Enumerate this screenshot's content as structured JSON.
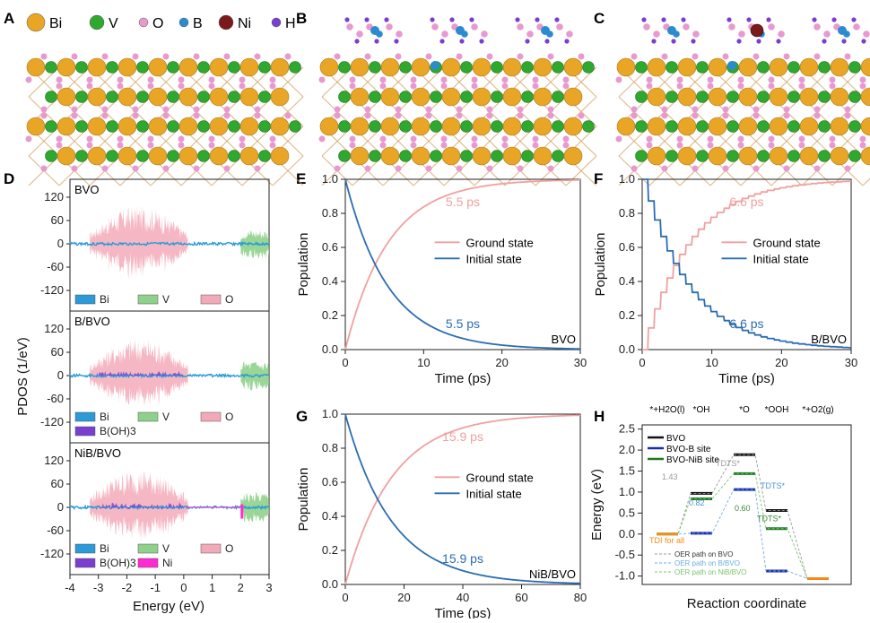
{
  "panel_labels": {
    "A": "A",
    "B": "B",
    "C": "C",
    "D": "D",
    "E": "E",
    "F": "F",
    "G": "G",
    "H": "H"
  },
  "atom_legend": [
    {
      "symbol": "Bi",
      "color": "#e8a526"
    },
    {
      "symbol": "V",
      "color": "#2ea82e"
    },
    {
      "symbol": "O",
      "color": "#e89ad0"
    },
    {
      "symbol": "B",
      "color": "#2a8ccf"
    },
    {
      "symbol": "Ni",
      "color": "#7a1a1a"
    },
    {
      "symbol": "H",
      "color": "#7a3ed1"
    }
  ],
  "colors": {
    "bi": "#2a9ad8",
    "v": "#8fd18a",
    "o": "#f3aab8",
    "boh3": "#7a3ed1",
    "ni": "#ff2ad1",
    "ground": "#f0a0a0",
    "initial": "#2b6db3"
  },
  "pdos": {
    "ylabel": "PDOS (1/eV)",
    "xlabel": "Energy (eV)",
    "xticks": [
      "-4",
      "-3",
      "-2",
      "-1",
      "0",
      "1",
      "2",
      "3"
    ],
    "yticks": [
      "120",
      "60",
      "0",
      "-60",
      "-120"
    ],
    "panels": [
      {
        "title": "BVO",
        "legend": [
          {
            "key": "bi",
            "label": "Bi"
          },
          {
            "key": "v",
            "label": "V"
          },
          {
            "key": "o",
            "label": "O"
          }
        ]
      },
      {
        "title": "B/BVO",
        "legend": [
          {
            "key": "bi",
            "label": "Bi"
          },
          {
            "key": "v",
            "label": "V"
          },
          {
            "key": "o",
            "label": "O"
          },
          {
            "key": "boh3",
            "label": "B(OH)3"
          }
        ]
      },
      {
        "title": "NiB/BVO",
        "legend": [
          {
            "key": "bi",
            "label": "Bi"
          },
          {
            "key": "v",
            "label": "V"
          },
          {
            "key": "o",
            "label": "O"
          },
          {
            "key": "boh3",
            "label": "B(OH)3"
          },
          {
            "key": "ni",
            "label": "Ni"
          }
        ]
      }
    ]
  },
  "chart_data": [
    {
      "panel": "E",
      "type": "line",
      "label": "BVO",
      "xlabel": "Time (ps)",
      "ylabel": "Population",
      "xlim": [
        0,
        30
      ],
      "ylim": [
        0,
        1
      ],
      "xticks": [
        "0",
        "10",
        "20",
        "30"
      ],
      "yticks": [
        "0.0",
        "0.2",
        "0.4",
        "0.6",
        "0.8",
        "1.0"
      ],
      "series": [
        {
          "name": "Ground state",
          "tau": 5.5,
          "tau_label": "5.5 ps"
        },
        {
          "name": "Initial state",
          "tau": 5.5,
          "tau_label": "5.5 ps"
        }
      ]
    },
    {
      "panel": "F",
      "type": "line",
      "label": "B/BVO",
      "xlabel": "Time (ps)",
      "ylabel": "Population",
      "xlim": [
        0,
        30
      ],
      "ylim": [
        0,
        1
      ],
      "xticks": [
        "0",
        "10",
        "20",
        "30"
      ],
      "yticks": [
        "0.0",
        "0.2",
        "0.4",
        "0.6",
        "0.8",
        "1.0"
      ],
      "series": [
        {
          "name": "Ground state",
          "tau": 6.6,
          "tau_label": "6.6 ps"
        },
        {
          "name": "Initial state",
          "tau": 6.6,
          "tau_label": "6.6 ps"
        }
      ]
    },
    {
      "panel": "G",
      "type": "line",
      "label": "NiB/BVO",
      "xlabel": "Time (ps)",
      "ylabel": "Population",
      "xlim": [
        0,
        80
      ],
      "ylim": [
        0,
        1
      ],
      "xticks": [
        "0",
        "20",
        "40",
        "60",
        "80"
      ],
      "yticks": [
        "0.0",
        "0.2",
        "0.4",
        "0.6",
        "0.8",
        "1.0"
      ],
      "series": [
        {
          "name": "Ground state",
          "tau": 15.9,
          "tau_label": "15.9 ps"
        },
        {
          "name": "Initial state",
          "tau": 15.9,
          "tau_label": "15.9 ps"
        }
      ]
    },
    {
      "panel": "H",
      "type": "line",
      "xlabel": "Reaction coordinate",
      "ylabel": "Energy (eV)",
      "ylim": [
        -1.2,
        2.6
      ],
      "yticks": [
        "2.5",
        "2.0",
        "1.5",
        "1.0",
        "0.5",
        "0.0",
        "-0.5",
        "-1.0"
      ],
      "steps": [
        "*+H2O(l)",
        "*OH",
        "*O",
        "*OOH",
        "*+O2(g)"
      ],
      "series": [
        {
          "name": "BVO",
          "color": "#111111",
          "values": [
            0,
            0.97,
            1.89,
            0.56,
            -1.06
          ]
        },
        {
          "name": "BVO-B site",
          "color": "#1a2aa8",
          "values": [
            0,
            0.02,
            1.06,
            -0.88,
            -1.06
          ]
        },
        {
          "name": "BVO-NiB site",
          "color": "#1c7a22",
          "values": [
            0,
            0.84,
            1.44,
            0.13,
            -1.06
          ]
        }
      ],
      "annotations": [
        "1.43",
        "0.82",
        "0.60",
        "TDTS*",
        "TDTS*",
        "TDTS*",
        "TDI for all"
      ],
      "path_legend": [
        {
          "name": "OER path on BVO",
          "color": "#999999"
        },
        {
          "name": "OER path on B/BVO",
          "color": "#6aaee0"
        },
        {
          "name": "OER path on NiB/BVO",
          "color": "#7ac46a"
        }
      ]
    }
  ]
}
